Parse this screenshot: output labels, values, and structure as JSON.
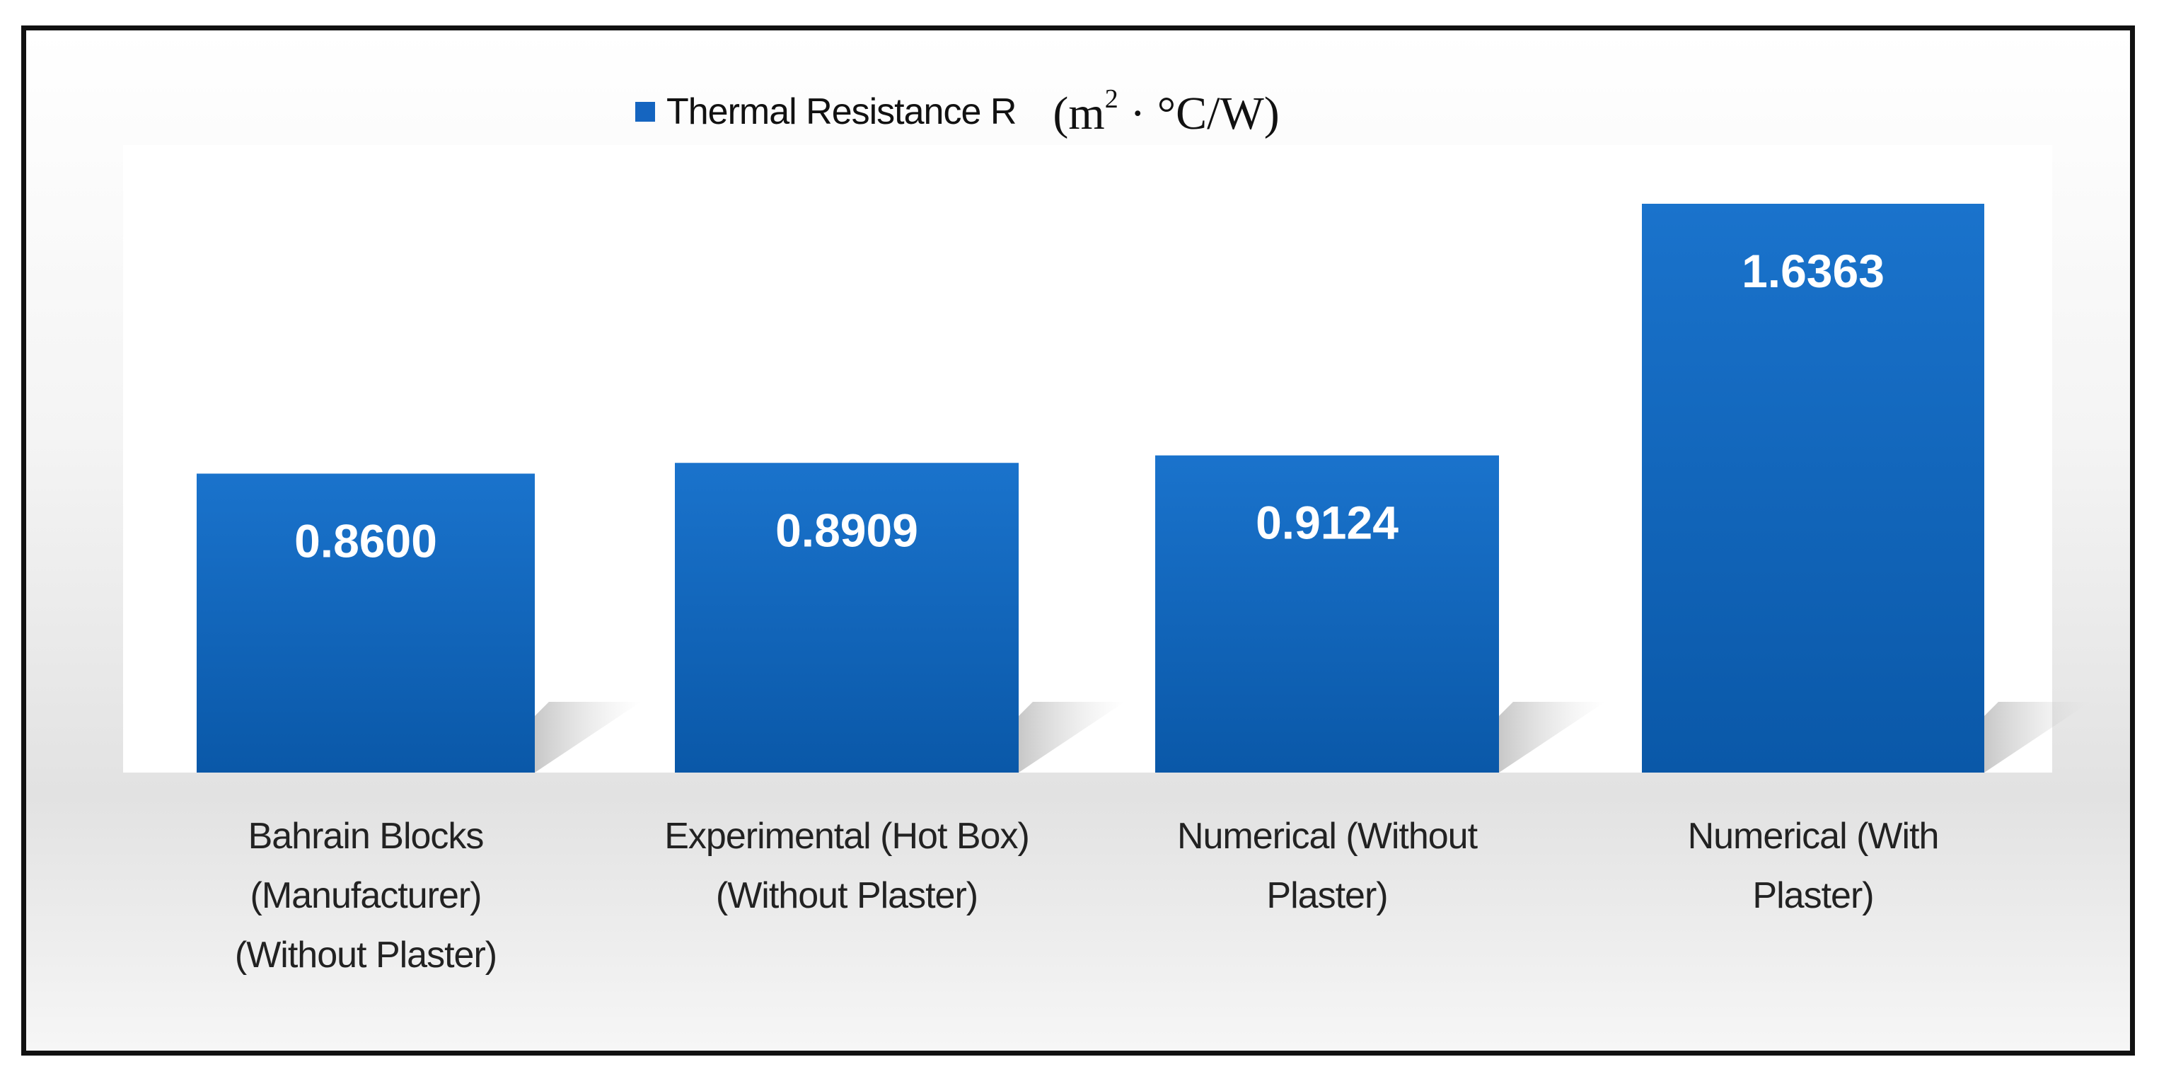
{
  "chart_data": {
    "type": "bar",
    "categories": [
      "Bahrain Blocks (Manufacturer) (Without Plaster)",
      "Experimental (Hot Box) (Without Plaster)",
      "Numerical (Without Plaster)",
      "Numerical (With Plaster)"
    ],
    "category_lines": [
      [
        "Bahrain Blocks",
        "(Manufacturer)",
        "(Without Plaster)"
      ],
      [
        "Experimental (Hot Box)",
        "(Without Plaster)"
      ],
      [
        "Numerical (Without",
        "Plaster)"
      ],
      [
        "Numerical (With",
        "Plaster)"
      ]
    ],
    "series": [
      {
        "name": "Thermal Resistance R",
        "values": [
          0.86,
          0.8909,
          0.9124,
          1.6363
        ],
        "data_labels": [
          "0.8600",
          "0.8909",
          "0.9124",
          "1.6363"
        ]
      }
    ],
    "legend": {
      "label": "Thermal Resistance R",
      "unit_base": "(m",
      "unit_exp": "2",
      "unit_rest": " · °C/W)",
      "placement": "top-center"
    },
    "ylim": [
      0,
      1.8
    ],
    "grid": false,
    "colors": {
      "bar": "#1565c0",
      "bar_dark": "#0d5aad",
      "label": "#ffffff"
    }
  }
}
